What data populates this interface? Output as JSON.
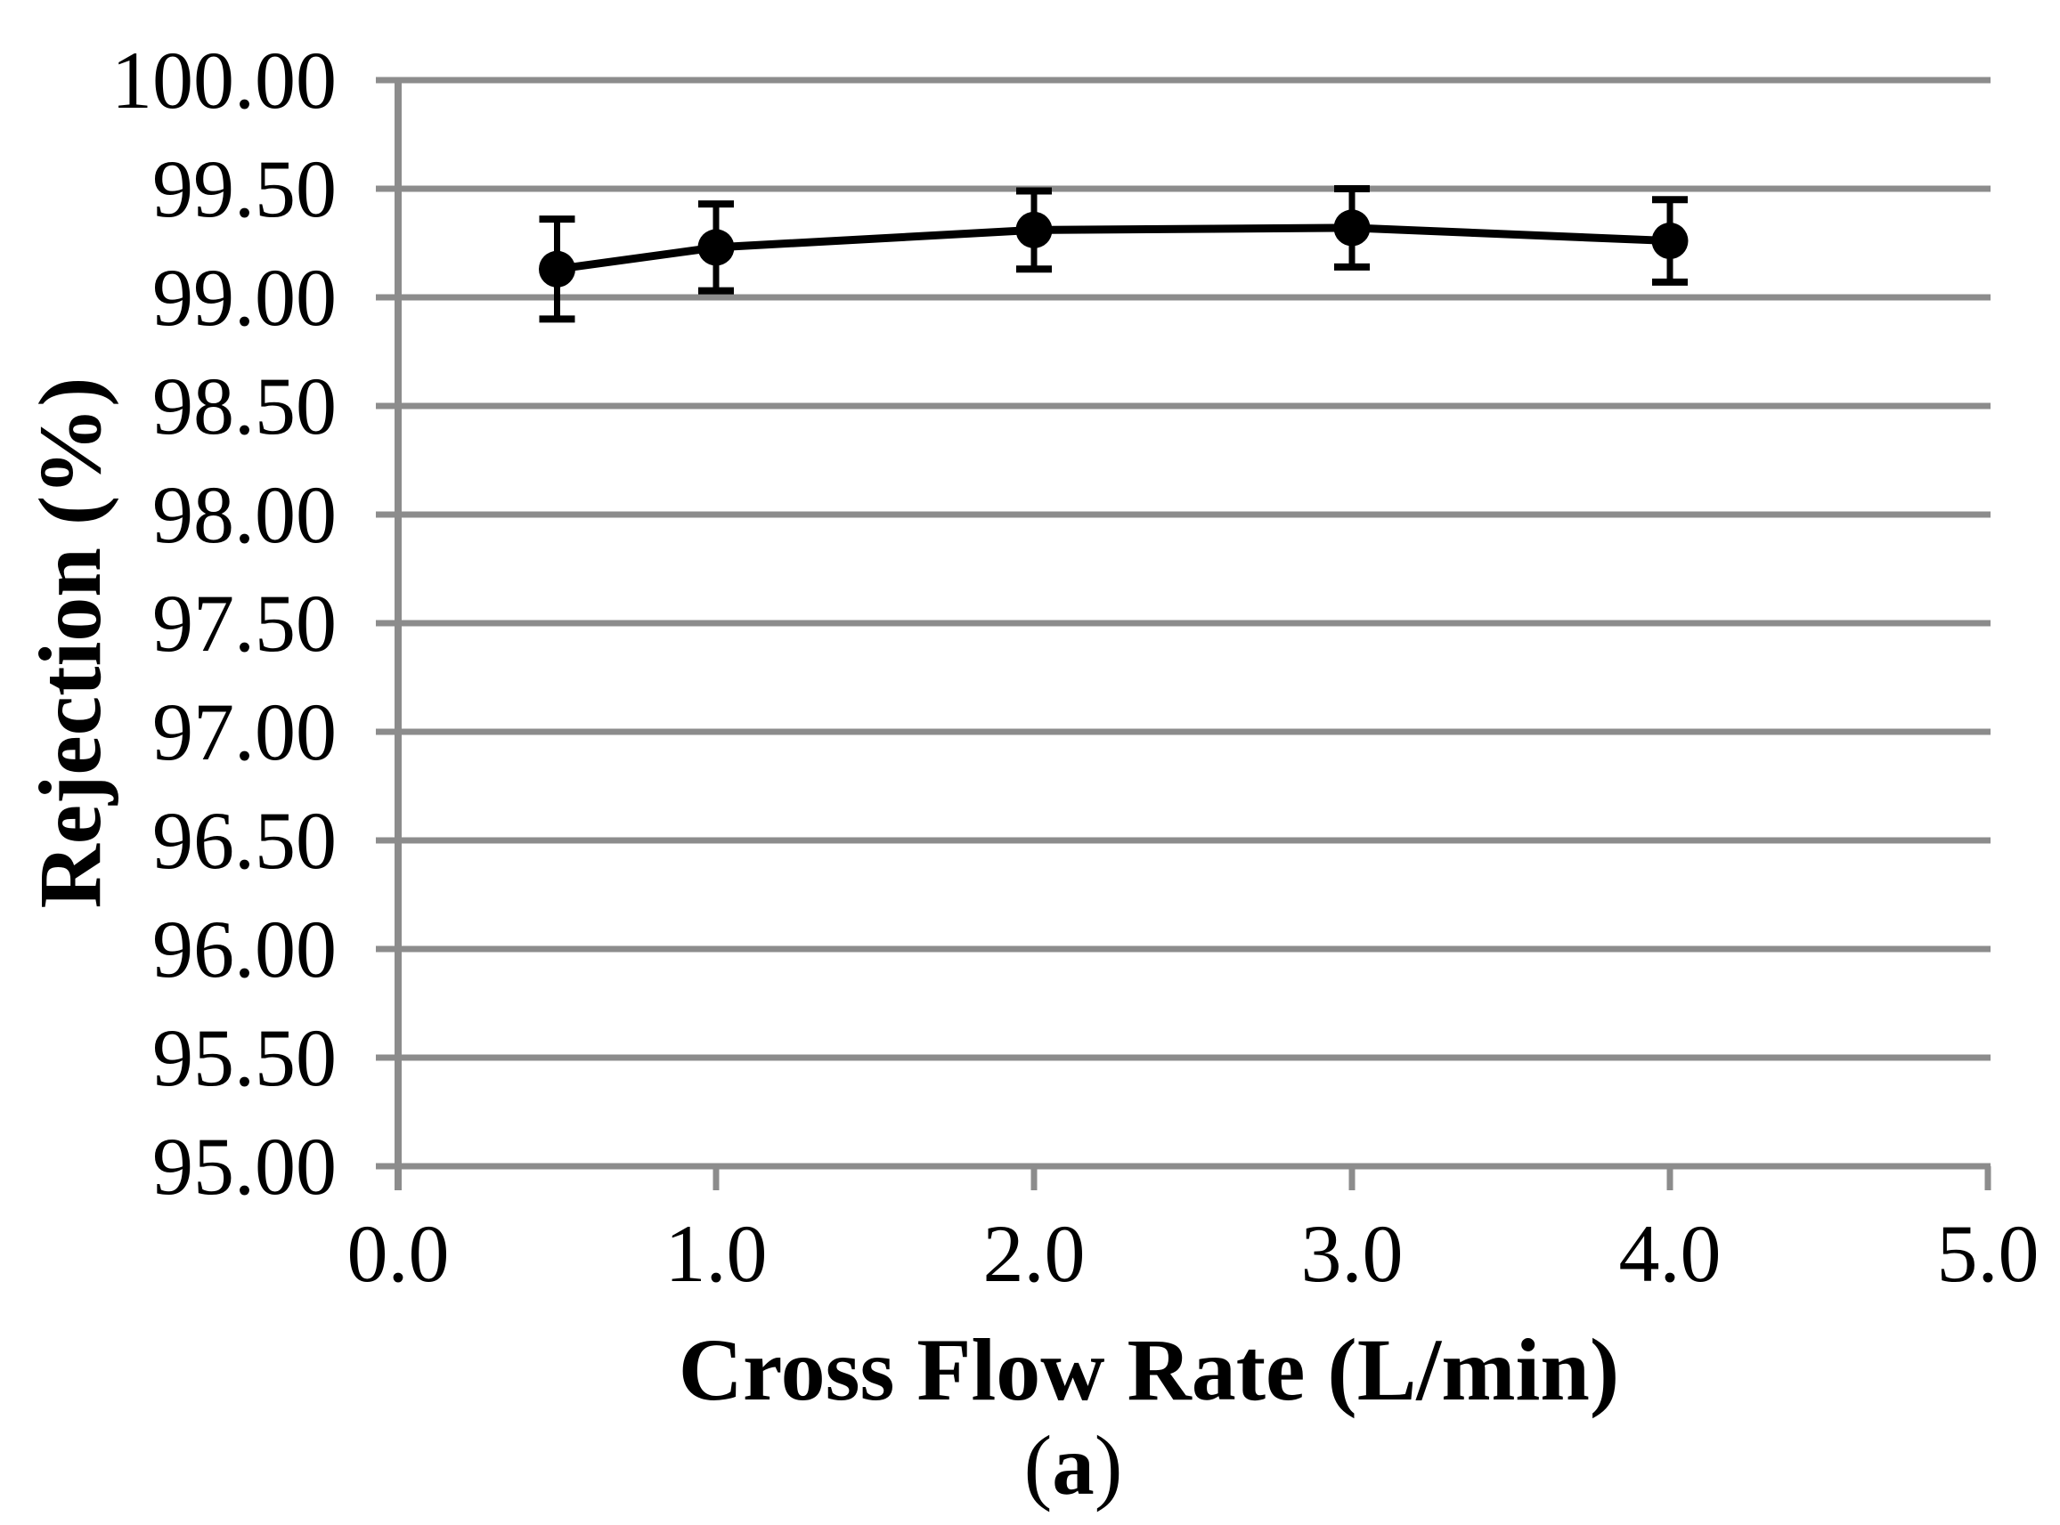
{
  "figure": {
    "caption": {
      "open": "(",
      "letter": "a",
      "close": ")"
    }
  },
  "chart_data": {
    "type": "line",
    "title": "",
    "xlabel": "Cross Flow Rate (L/min)",
    "ylabel": "Rejection (%)",
    "x": [
      0.5,
      1.0,
      2.0,
      3.0,
      4.0
    ],
    "y": [
      99.13,
      99.23,
      99.31,
      99.32,
      99.26
    ],
    "error_y": [
      0.23,
      0.2,
      0.18,
      0.18,
      0.19
    ],
    "xlim": [
      0.0,
      5.0
    ],
    "ylim": [
      95.0,
      100.0
    ],
    "x_ticks": [
      0.0,
      1.0,
      2.0,
      3.0,
      4.0,
      5.0
    ],
    "x_tick_labels": [
      "0.0",
      "1.0",
      "2.0",
      "3.0",
      "4.0",
      "5.0"
    ],
    "y_ticks": [
      95.0,
      95.5,
      96.0,
      96.5,
      97.0,
      97.5,
      98.0,
      98.5,
      99.0,
      99.5,
      100.0
    ],
    "y_tick_labels": [
      "95.00",
      "95.50",
      "96.00",
      "96.50",
      "97.00",
      "97.50",
      "98.00",
      "98.50",
      "99.00",
      "99.50",
      "100.00"
    ],
    "grid": "horizontal",
    "legend": "none",
    "marker": "filled-circle",
    "colors": {
      "line": "#000000",
      "marker": "#000000",
      "gridline": "#8c8c8c",
      "axis": "#8c8c8c",
      "text": "#000000",
      "background": "#ffffff"
    }
  }
}
